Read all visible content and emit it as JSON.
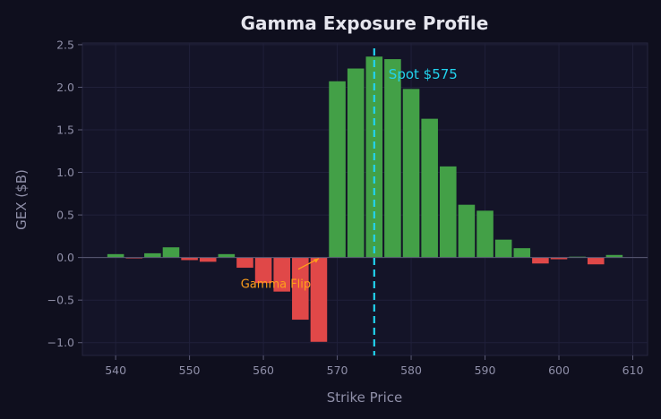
{
  "chart_data": {
    "type": "bar",
    "title": "Gamma Exposure Profile",
    "xlabel": "Strike Price",
    "ylabel": "GEX ($B)",
    "xlim": [
      535.5,
      612
    ],
    "ylim": [
      -1.15,
      2.52
    ],
    "xticks": [
      540,
      550,
      560,
      570,
      580,
      590,
      600,
      610
    ],
    "yticks": [
      -1.0,
      -0.5,
      0.0,
      0.5,
      1.0,
      1.5,
      2.0,
      2.5
    ],
    "ytick_labels": [
      "−1.0",
      "−0.5",
      "0.0",
      "0.5",
      "1.0",
      "1.5",
      "2.0",
      "2.5"
    ],
    "grid": true,
    "x": [
      540,
      542.5,
      545,
      547.5,
      550,
      552.5,
      555,
      557.5,
      560,
      562.5,
      565,
      567.5,
      570,
      572.5,
      575,
      577.5,
      580,
      582.5,
      585,
      587.5,
      590,
      592.5,
      595,
      597.5,
      600,
      602.5,
      605,
      607.5
    ],
    "values": [
      0.04,
      -0.01,
      0.05,
      0.12,
      -0.03,
      -0.05,
      0.04,
      -0.12,
      -0.3,
      -0.4,
      -0.73,
      -0.99,
      2.07,
      2.22,
      2.36,
      2.33,
      1.98,
      1.63,
      1.07,
      0.62,
      0.55,
      0.21,
      0.11,
      -0.07,
      -0.02,
      0.01,
      -0.08,
      0.03
    ],
    "colors": {
      "positive": "#43a047",
      "negative": "#e04848",
      "background": "#141428",
      "page": "#0f0f1e"
    },
    "annotations": [
      {
        "text": "Spot $575",
        "x": 575,
        "type": "vline",
        "color": "#22d3ee"
      },
      {
        "text": "Gamma Flip",
        "x": 567.5,
        "y": 0.0,
        "type": "arrow",
        "color": "#ff9f1a"
      }
    ]
  }
}
